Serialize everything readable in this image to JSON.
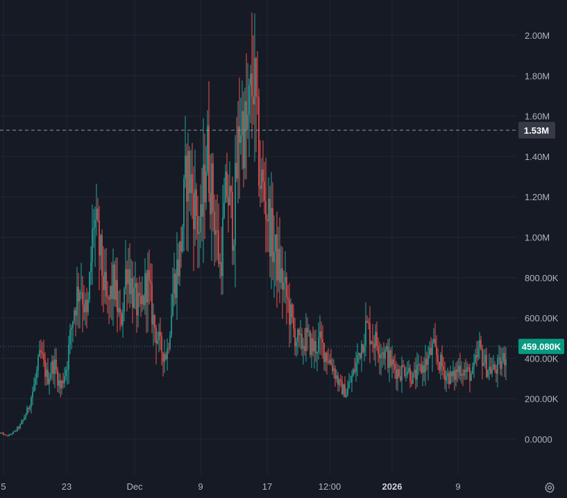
{
  "chart_data": {
    "type": "candlestick",
    "y_unit": "volume",
    "ylim": [
      -180000,
      2180000
    ],
    "y_ticks": [
      {
        "value": 2000000,
        "label": "2.00M"
      },
      {
        "value": 1800000,
        "label": "1.80M"
      },
      {
        "value": 1600000,
        "label": "1.60M"
      },
      {
        "value": 1400000,
        "label": "1.40M"
      },
      {
        "value": 1200000,
        "label": "1.20M"
      },
      {
        "value": 1000000,
        "label": "1.00M"
      },
      {
        "value": 800000,
        "label": "800.00K"
      },
      {
        "value": 600000,
        "label": "600.00K"
      },
      {
        "value": 400000,
        "label": "400.00K"
      },
      {
        "value": 200000,
        "label": "200.00K"
      },
      {
        "value": 0,
        "label": "0.0000"
      }
    ],
    "x_ticks": [
      {
        "label": "5",
        "bold": false
      },
      {
        "label": "23",
        "bold": false
      },
      {
        "label": "Dec",
        "bold": false
      },
      {
        "label": "9",
        "bold": false
      },
      {
        "label": "17",
        "bold": false
      },
      {
        "label": "12:00",
        "bold": false
      },
      {
        "label": "2026",
        "bold": true
      },
      {
        "label": "9",
        "bold": false
      }
    ],
    "crosshair": {
      "value": 1530000,
      "label": "1.53M"
    },
    "last_price": {
      "value": 459080,
      "label": "459.080K"
    },
    "series_shape": [
      [
        0,
        30000
      ],
      [
        2,
        15000
      ],
      [
        4,
        35000
      ],
      [
        6,
        70000
      ],
      [
        8,
        140000
      ],
      [
        10,
        260000
      ],
      [
        12,
        420000
      ],
      [
        14,
        300000
      ],
      [
        16,
        380000
      ],
      [
        18,
        250000
      ],
      [
        20,
        380000
      ],
      [
        22,
        650000
      ],
      [
        24,
        780000
      ],
      [
        26,
        580000
      ],
      [
        28,
        1100000
      ],
      [
        30,
        900000
      ],
      [
        32,
        640000
      ],
      [
        34,
        780000
      ],
      [
        36,
        560000
      ],
      [
        38,
        880000
      ],
      [
        40,
        700000
      ],
      [
        42,
        620000
      ],
      [
        44,
        800000
      ],
      [
        46,
        580000
      ],
      [
        48,
        450000
      ],
      [
        50,
        420000
      ],
      [
        52,
        760000
      ],
      [
        54,
        920000
      ],
      [
        56,
        1350000
      ],
      [
        58,
        1200000
      ],
      [
        60,
        1000000
      ],
      [
        62,
        1450000
      ],
      [
        64,
        1150000
      ],
      [
        66,
        850000
      ],
      [
        68,
        1250000
      ],
      [
        70,
        1050000
      ],
      [
        72,
        1600000
      ],
      [
        74,
        1500000
      ],
      [
        76,
        1800000
      ],
      [
        78,
        1300000
      ],
      [
        80,
        1150000
      ],
      [
        82,
        950000
      ],
      [
        84,
        820000
      ],
      [
        86,
        700000
      ],
      [
        88,
        540000
      ],
      [
        90,
        460000
      ],
      [
        92,
        500000
      ],
      [
        94,
        450000
      ],
      [
        96,
        480000
      ],
      [
        98,
        420000
      ],
      [
        100,
        360000
      ],
      [
        102,
        260000
      ],
      [
        104,
        230000
      ],
      [
        106,
        320000
      ],
      [
        108,
        440000
      ],
      [
        110,
        560000
      ],
      [
        112,
        500000
      ],
      [
        114,
        460000
      ],
      [
        116,
        420000
      ],
      [
        118,
        360000
      ],
      [
        120,
        330000
      ],
      [
        122,
        360000
      ],
      [
        124,
        300000
      ],
      [
        126,
        340000
      ],
      [
        128,
        380000
      ],
      [
        130,
        450000
      ],
      [
        132,
        380000
      ],
      [
        134,
        320000
      ],
      [
        136,
        300000
      ],
      [
        138,
        360000
      ],
      [
        140,
        330000
      ],
      [
        142,
        320000
      ],
      [
        144,
        450000
      ],
      [
        146,
        360000
      ],
      [
        148,
        340000
      ],
      [
        150,
        360000
      ],
      [
        152,
        420000
      ]
    ]
  },
  "chart_colors": {
    "background": "#161a25",
    "grid": "#232733",
    "up": "#26a69a",
    "down": "#ef5350",
    "axis_text": "#b2b5be",
    "crosshair_tag_bg": "#363a45",
    "last_price_tag_bg": "#089981"
  },
  "icons": {
    "settings": "gear-icon"
  }
}
